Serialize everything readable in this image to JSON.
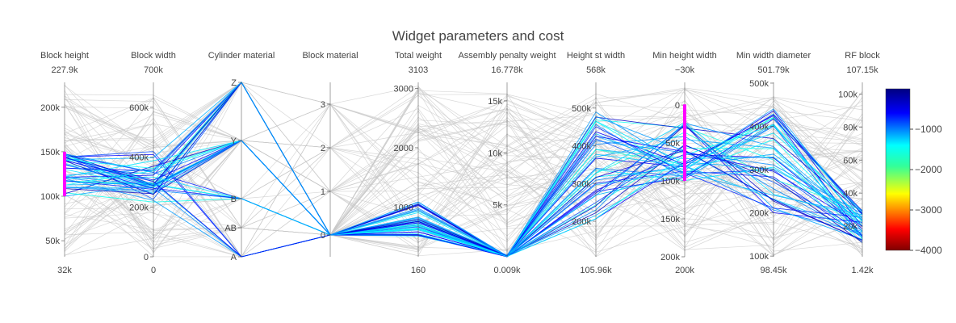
{
  "chart_data": {
    "type": "parallel_coordinates",
    "title": "Widget parameters and cost",
    "colorscale_name": "Jet",
    "colorscale": [
      {
        "t": 0.0,
        "color": "#800000"
      },
      {
        "t": 0.13,
        "color": "#ff0000"
      },
      {
        "t": 0.35,
        "color": "#ffff00"
      },
      {
        "t": 0.52,
        "color": "#33ff99"
      },
      {
        "t": 0.65,
        "color": "#00ffff"
      },
      {
        "t": 0.85,
        "color": "#0000ff"
      },
      {
        "t": 1.0,
        "color": "#000080"
      }
    ],
    "colorbar": {
      "range": [
        -4000,
        0
      ],
      "ticks": [
        "−1000",
        "−2000",
        "−3000",
        "−4000"
      ],
      "tick_values": [
        -1000,
        -2000,
        -3000,
        -4000
      ]
    },
    "highlight_color": "#ff00ff",
    "unselected_color": "#c8c8c8",
    "dimensions": [
      {
        "label": "Block height",
        "range_top": "227.9k",
        "range_bottom": "32k",
        "min": 32000,
        "max": 227900,
        "ticks": [
          {
            "v": 200000,
            "t": "200k"
          },
          {
            "v": 150000,
            "t": "150k"
          },
          {
            "v": 100000,
            "t": "100k"
          },
          {
            "v": 50000,
            "t": "50k"
          }
        ],
        "constraint": [
          100000,
          150000
        ]
      },
      {
        "label": "Block width",
        "range_top": "700k",
        "range_bottom": "0",
        "min": 0,
        "max": 700000,
        "ticks": [
          {
            "v": 600000,
            "t": "600k"
          },
          {
            "v": 400000,
            "t": "400k"
          },
          {
            "v": 200000,
            "t": "200k"
          },
          {
            "v": 0,
            "t": "0"
          }
        ]
      },
      {
        "label": "Cylinder material",
        "range_top": "",
        "range_bottom": "",
        "min": 0,
        "max": 3,
        "ticks": [
          {
            "v": 3,
            "t": "Z"
          },
          {
            "v": 2,
            "t": "Y"
          },
          {
            "v": 1,
            "t": "B"
          },
          {
            "v": 0.5,
            "t": "AB"
          },
          {
            "v": 0,
            "t": "A"
          }
        ]
      },
      {
        "label": "Block material",
        "range_top": "",
        "range_bottom": "",
        "min": -0.5,
        "max": 3.5,
        "ticks": [
          {
            "v": 3,
            "t": "3"
          },
          {
            "v": 2,
            "t": "2"
          },
          {
            "v": 1,
            "t": "1"
          },
          {
            "v": 0,
            "t": "0"
          }
        ]
      },
      {
        "label": "Total weight",
        "range_top": "3103",
        "range_bottom": "160",
        "min": 160,
        "max": 3103,
        "ticks": [
          {
            "v": 3000,
            "t": "3000"
          },
          {
            "v": 2000,
            "t": "2000"
          },
          {
            "v": 1000,
            "t": "1000"
          }
        ]
      },
      {
        "label": "Assembly penalty weight",
        "range_top": "16.778k",
        "range_bottom": "0.009k",
        "min": 9,
        "max": 16778,
        "ticks": [
          {
            "v": 15000,
            "t": "15k"
          },
          {
            "v": 10000,
            "t": "10k"
          },
          {
            "v": 5000,
            "t": "5k"
          }
        ]
      },
      {
        "label": "Height st width",
        "range_top": "568k",
        "range_bottom": "105.96k",
        "min": 105960,
        "max": 568000,
        "ticks": [
          {
            "v": 500000,
            "t": "500k"
          },
          {
            "v": 400000,
            "t": "400k"
          },
          {
            "v": 300000,
            "t": "300k"
          },
          {
            "v": 200000,
            "t": "200k"
          }
        ]
      },
      {
        "label": "Min height width",
        "range_top": "−30k",
        "range_bottom": "200k",
        "min": -30000,
        "max": 200000,
        "reversed": true,
        "ticks": [
          {
            "v": 0,
            "t": "0"
          },
          {
            "v": 50000,
            "t": "50k"
          },
          {
            "v": 100000,
            "t": "100k"
          },
          {
            "v": 150000,
            "t": "150k"
          },
          {
            "v": 200000,
            "t": "200k"
          }
        ],
        "constraint": [
          -1000,
          100000
        ]
      },
      {
        "label": "Min width diameter",
        "range_top": "501.79k",
        "range_bottom": "98.45k",
        "min": 98450,
        "max": 501790,
        "ticks": [
          {
            "v": 500000,
            "t": "500k"
          },
          {
            "v": 400000,
            "t": "400k"
          },
          {
            "v": 300000,
            "t": "300k"
          },
          {
            "v": 200000,
            "t": "200k"
          },
          {
            "v": 100000,
            "t": "100k"
          }
        ]
      },
      {
        "label": "RF block",
        "range_top": "107.15k",
        "range_bottom": "1.42k",
        "min": 1420,
        "max": 107150,
        "ticks": [
          {
            "v": 100000,
            "t": "100k"
          },
          {
            "v": 80000,
            "t": "80k"
          },
          {
            "v": 60000,
            "t": "60k"
          },
          {
            "v": 40000,
            "t": "40k"
          },
          {
            "v": 20000,
            "t": "20k"
          }
        ]
      }
    ]
  }
}
